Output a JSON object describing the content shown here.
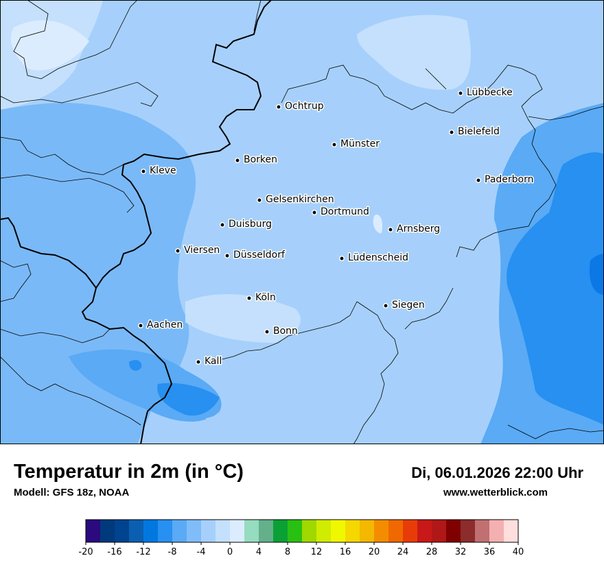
{
  "title": "Temperatur in 2m (in °C)",
  "model": "Modell: GFS 18z, NOAA",
  "datetime": "Di, 06.01.2026 22:00 Uhr",
  "website": "www.wetterblick.com",
  "cities": [
    {
      "name": "Lübbecke"
    },
    {
      "name": "Ochtrup"
    },
    {
      "name": "Bielefeld"
    },
    {
      "name": "Münster"
    },
    {
      "name": "Borken"
    },
    {
      "name": "Kleve"
    },
    {
      "name": "Paderborn"
    },
    {
      "name": "Gelsenkirchen"
    },
    {
      "name": "Dortmund"
    },
    {
      "name": "Duisburg"
    },
    {
      "name": "Arnsberg"
    },
    {
      "name": "Viersen"
    },
    {
      "name": "Düsseldorf"
    },
    {
      "name": "Lüdenscheid"
    },
    {
      "name": "Köln"
    },
    {
      "name": "Siegen"
    },
    {
      "name": "Aachen"
    },
    {
      "name": "Bonn"
    },
    {
      "name": "Kall"
    }
  ],
  "legend": {
    "ticks": [
      "-20",
      "-16",
      "-12",
      "-8",
      "-4",
      "0",
      "4",
      "8",
      "12",
      "16",
      "20",
      "24",
      "28",
      "32",
      "36",
      "40"
    ],
    "colors": [
      "#2a0a7e",
      "#003a7c",
      "#00438f",
      "#0b5fb0",
      "#0078e0",
      "#2790f0",
      "#5aaaf5",
      "#80bdf8",
      "#a6d0fb",
      "#c4e0fd",
      "#dcecff",
      "#96dcc0",
      "#64b08a",
      "#0aa035",
      "#28c012",
      "#a0d800",
      "#d0ec00",
      "#f0f800",
      "#f4d800",
      "#f4b800",
      "#f48c00",
      "#f06800",
      "#e83c08",
      "#c81818",
      "#b01818",
      "#800000",
      "#8c2c2c",
      "#c07070",
      "#f4b0b0",
      "#ffdede"
    ]
  }
}
